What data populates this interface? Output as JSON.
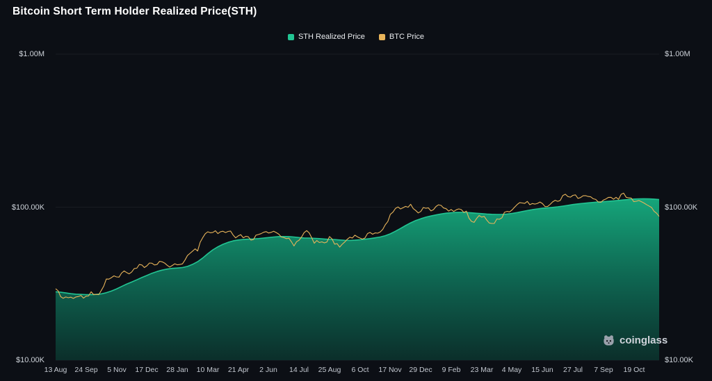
{
  "watermark": {
    "label": "coinglass"
  },
  "chart_data": {
    "type": "area",
    "title": "Bitcoin Short Term Holder Realized Price(STH)",
    "y_scale": "log",
    "y_unit": "USD",
    "grid": "horizontal-faint",
    "legend_position": "top-center",
    "y_ticks": [
      {
        "label": "$10.00K",
        "value_k": 10
      },
      {
        "label": "$100.00K",
        "value_k": 100
      },
      {
        "label": "$1.00M",
        "value_k": 1000
      }
    ],
    "x_tick_labels": [
      "13 Aug",
      "24 Sep",
      "5 Nov",
      "17 Dec",
      "28 Jan",
      "10 Mar",
      "21 Apr",
      "2 Jun",
      "14 Jul",
      "25 Aug",
      "6 Oct",
      "17 Nov",
      "29 Dec",
      "9 Feb",
      "23 Mar",
      "4 May",
      "15 Jun",
      "27 Jul",
      "7 Sep",
      "19 Oct"
    ],
    "x_tick_interval_weeks": 6,
    "weeks_total": 119,
    "series": [
      {
        "name": "STH Realized Price",
        "type": "area",
        "color": "#22c593",
        "values_k": [
          28.0,
          27.8,
          27.5,
          27.2,
          27.0,
          26.9,
          26.8,
          26.8,
          26.9,
          27.1,
          27.6,
          28.3,
          29.2,
          30.3,
          31.4,
          32.4,
          33.5,
          34.7,
          35.8,
          37.0,
          38.0,
          38.8,
          39.4,
          39.8,
          40.0,
          40.3,
          41.0,
          42.3,
          44.0,
          46.5,
          49.6,
          52.6,
          55.1,
          57.2,
          58.9,
          60.2,
          61.0,
          61.5,
          61.8,
          62.0,
          62.3,
          62.8,
          63.3,
          63.8,
          64.2,
          64.3,
          64.2,
          63.8,
          63.3,
          62.9,
          62.8,
          62.6,
          62.3,
          61.9,
          61.6,
          61.4,
          61.0,
          60.7,
          60.6,
          60.8,
          61.2,
          61.7,
          62.3,
          63.0,
          63.8,
          65.1,
          67.0,
          69.6,
          72.6,
          75.8,
          79.0,
          81.8,
          84.0,
          86.0,
          87.6,
          89.0,
          90.3,
          91.3,
          92.0,
          92.4,
          92.5,
          92.3,
          91.8,
          91.2,
          90.7,
          90.2,
          89.8,
          89.6,
          89.7,
          90.2,
          91.0,
          92.2,
          93.6,
          95.0,
          96.3,
          97.4,
          98.3,
          99.0,
          99.7,
          100.5,
          101.6,
          102.8,
          104.0,
          105.0,
          105.9,
          106.7,
          107.4,
          108.0,
          108.6,
          109.3,
          110.0,
          110.7,
          111.5,
          112.3,
          113.0,
          113.3,
          113.5,
          113.4,
          112.9,
          112.1
        ]
      },
      {
        "name": "BTC Price",
        "type": "line",
        "color": "#e8b45a",
        "values_k": [
          29.3,
          26.0,
          25.9,
          25.8,
          25.9,
          26.5,
          26.2,
          28.0,
          26.9,
          28.5,
          33.9,
          34.6,
          35.0,
          37.1,
          37.4,
          37.7,
          39.9,
          41.9,
          41.4,
          43.0,
          42.2,
          43.9,
          41.7,
          41.6,
          42.0,
          42.6,
          48.3,
          51.6,
          51.7,
          63.1,
          69.0,
          68.4,
          67.2,
          69.6,
          69.4,
          65.7,
          64.9,
          63.1,
          64.0,
          61.4,
          66.3,
          68.5,
          67.8,
          69.6,
          66.6,
          63.2,
          62.7,
          55.8,
          60.8,
          68.2,
          67.9,
          58.1,
          58.7,
          58.4,
          64.2,
          57.3,
          54.8,
          59.2,
          63.6,
          65.6,
          62.8,
          62.9,
          68.4,
          67.9,
          68.8,
          76.7,
          89.8,
          98.0,
          97.3,
          101.2,
          104.5,
          95.1,
          93.7,
          98.3,
          94.5,
          101.1,
          102.6,
          97.7,
          96.5,
          96.1,
          96.3,
          94.2,
          80.7,
          84.3,
          86.1,
          82.4,
          78.2,
          83.7,
          85.2,
          93.8,
          95.9,
          104.1,
          106.5,
          109.0,
          105.6,
          105.8,
          105.5,
          100.9,
          108.3,
          109.2,
          119.1,
          117.3,
          119.4,
          114.1,
          118.7,
          117.4,
          113.5,
          108.2,
          111.2,
          115.9,
          112.6,
          112.4,
          123.5,
          115.0,
          108.6,
          110.5,
          106.5,
          101.8,
          94.0,
          87.0
        ]
      }
    ]
  }
}
